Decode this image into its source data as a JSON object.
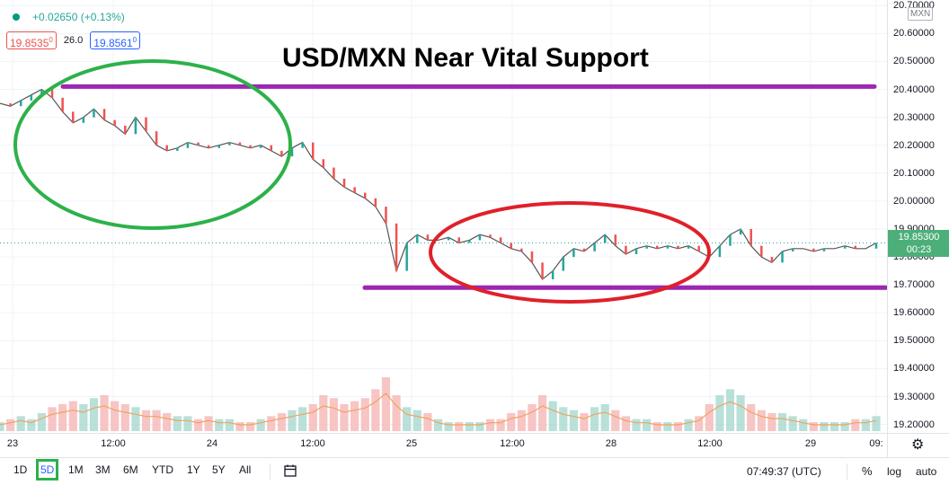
{
  "header": {
    "title": "USD/MXN Near Vital Support",
    "change": "+0.02650 (+0.13%)",
    "sell_price": "19.8535",
    "sell_sup": "0",
    "spread": "26.0",
    "buy_price": "19.8561",
    "buy_sup": "0",
    "status_color": "#089981"
  },
  "price_axis": {
    "currency": "MXN",
    "labels": [
      "20.70000",
      "20.60000",
      "20.50000",
      "20.40000",
      "20.30000",
      "20.20000",
      "20.10000",
      "20.00000",
      "19.90000",
      "19.80000",
      "19.70000",
      "19.60000",
      "19.50000",
      "19.40000",
      "19.30000",
      "19.20000"
    ],
    "current_price": "19.85300",
    "countdown": "00:23"
  },
  "time_axis": {
    "labels": [
      "23",
      "12:00",
      "24",
      "12:00",
      "25",
      "12:00",
      "28",
      "12:00",
      "29",
      "09:"
    ]
  },
  "bottom_bar": {
    "ranges": [
      "1D",
      "5D",
      "1M",
      "3M",
      "6M",
      "YTD",
      "1Y",
      "5Y",
      "All"
    ],
    "active_range": "5D",
    "clock": "07:49:37 (UTC)",
    "percent_label": "%",
    "log_label": "log",
    "auto_label": "auto"
  },
  "annotations": {
    "resistance_level": 20.41,
    "support_level": 19.69,
    "line_color": "#9c27b0",
    "ellipse_left_color": "#2db14a",
    "ellipse_right_color": "#e0202a"
  },
  "chart_data": {
    "type": "line",
    "series": [
      {
        "values": [
          20.35,
          20.34,
          20.36,
          20.38,
          20.4,
          20.37,
          20.32,
          20.28,
          20.3,
          20.33,
          20.29,
          20.27,
          20.24,
          20.3,
          20.25,
          20.2,
          20.18,
          20.19,
          20.21,
          20.2,
          20.19,
          20.2,
          20.21,
          20.2,
          20.19,
          20.2,
          20.18,
          20.16,
          20.19,
          20.21,
          20.15,
          20.12,
          20.08,
          20.05,
          20.03,
          20.01,
          19.98,
          19.92,
          19.75,
          19.85,
          19.88,
          19.86,
          19.86,
          19.87,
          19.85,
          19.86,
          19.88,
          19.87,
          19.85,
          19.83,
          19.82,
          19.78,
          19.72,
          19.75,
          19.8,
          19.83,
          19.82,
          19.85,
          19.88,
          19.84,
          19.81,
          19.83,
          19.84,
          19.83,
          19.84,
          19.83,
          19.84,
          19.82,
          19.8,
          19.84,
          19.88,
          19.9,
          19.84,
          19.8,
          19.78,
          19.82,
          19.83,
          19.83,
          19.82,
          19.83,
          19.83,
          19.84,
          19.83,
          19.83,
          19.85
        ]
      }
    ],
    "volume": [
      3,
      4,
      5,
      4,
      6,
      8,
      9,
      10,
      9,
      11,
      12,
      10,
      9,
      8,
      7,
      7,
      6,
      5,
      5,
      4,
      5,
      4,
      4,
      3,
      3,
      4,
      5,
      6,
      7,
      8,
      9,
      12,
      11,
      9,
      10,
      11,
      14,
      18,
      12,
      8,
      7,
      6,
      4,
      3,
      3,
      3,
      3,
      4,
      4,
      6,
      7,
      9,
      12,
      10,
      8,
      7,
      6,
      8,
      9,
      7,
      5,
      4,
      4,
      3,
      3,
      3,
      4,
      5,
      9,
      12,
      14,
      12,
      9,
      7,
      6,
      6,
      5,
      4,
      3,
      3,
      3,
      3,
      4,
      4,
      5
    ],
    "ylim": [
      19.17,
      20.72
    ]
  }
}
